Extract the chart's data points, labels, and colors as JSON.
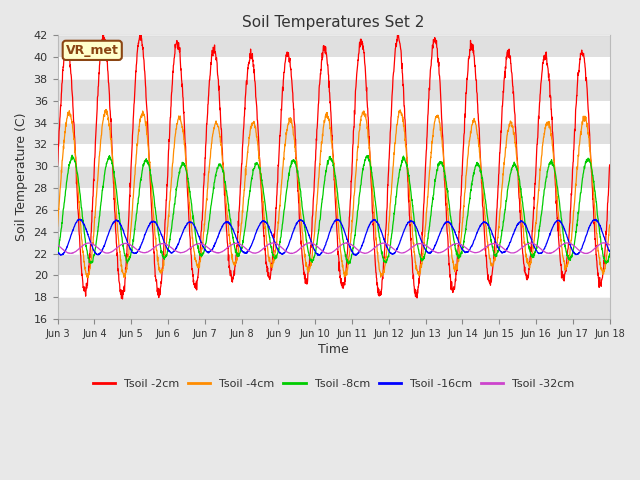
{
  "title": "Soil Temperatures Set 2",
  "xlabel": "Time",
  "ylabel": "Soil Temperature (C)",
  "ylim": [
    16,
    42
  ],
  "yticks": [
    16,
    18,
    20,
    22,
    24,
    26,
    28,
    30,
    32,
    34,
    36,
    38,
    40,
    42
  ],
  "background_color": "#e8e8e8",
  "plot_bg_color": "#ffffff",
  "annotation_text": "VR_met",
  "annotation_bg": "#ffffcc",
  "annotation_border": "#8B4513",
  "lines": [
    {
      "label": "Tsoil -2cm",
      "color": "#ff0000",
      "mean": 30.0,
      "amp": 11.0,
      "phase": 0.0
    },
    {
      "label": "Tsoil -4cm",
      "color": "#ff8c00",
      "mean": 27.5,
      "amp": 7.0,
      "phase": 0.4
    },
    {
      "label": "Tsoil -8cm",
      "color": "#00cc00",
      "mean": 26.0,
      "amp": 4.5,
      "phase": 1.0
    },
    {
      "label": "Tsoil -16cm",
      "color": "#0000ff",
      "mean": 23.5,
      "amp": 1.5,
      "phase": 2.2
    },
    {
      "label": "Tsoil -32cm",
      "color": "#cc44cc",
      "mean": 22.5,
      "amp": 0.45,
      "phase": 3.8
    }
  ],
  "xticklabels": [
    "Jun 3",
    "Jun 4",
    "Jun 5",
    "Jun 6",
    "Jun 7",
    "Jun 8",
    "Jun 9",
    "Jun 10",
    "Jun 11",
    "Jun 12",
    "Jun 13",
    "Jun 14",
    "Jun 15",
    "Jun 16",
    "Jun 17",
    "Jun 18"
  ],
  "n_points": 2160,
  "days": 15,
  "band_color": "#e0e0e0"
}
